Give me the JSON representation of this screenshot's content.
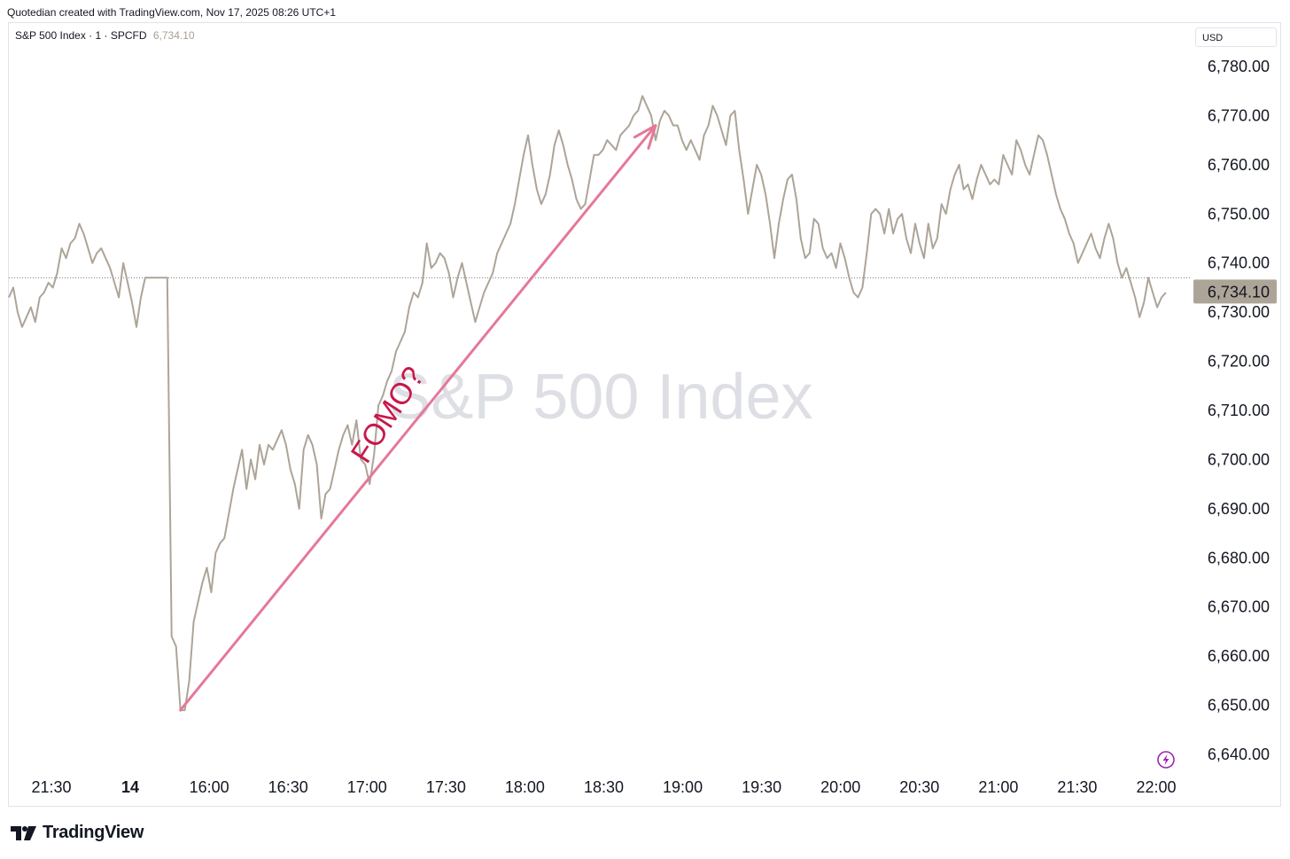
{
  "header": {
    "credit": "Quotedian created with TradingView.com, Nov 17, 2025 08:26 UTC+1"
  },
  "legend": {
    "symbol": "S&P 500 Index · 1 · SPCFD",
    "price": "6,734.10"
  },
  "currency": "USD",
  "watermark": "S&P 500 Index",
  "brand": {
    "name": "TradingView"
  },
  "colors": {
    "line": "#ada498",
    "annotation": "#e57898",
    "annotation_text": "#c8184a",
    "price_tag": "#ada498",
    "grid_dotted": "#777777"
  },
  "icons": {
    "logo": "tradingview-logo-icon",
    "lightning": "lightning-icon"
  },
  "chart_data": {
    "type": "line",
    "title": "",
    "xlabel": "",
    "ylabel": "",
    "ylim": [
      6635,
      6785
    ],
    "x_ticks": [
      "21:30",
      "14",
      "16:00",
      "16:30",
      "17:00",
      "17:30",
      "18:00",
      "18:30",
      "19:00",
      "19:30",
      "20:00",
      "20:30",
      "21:00",
      "21:30",
      "22:00"
    ],
    "y_ticks": [
      "6,780.00",
      "6,770.00",
      "6,760.00",
      "6,750.00",
      "6,740.00",
      "6,730.00",
      "6,720.00",
      "6,710.00",
      "6,700.00",
      "6,690.00",
      "6,680.00",
      "6,670.00",
      "6,660.00",
      "6,650.00",
      "6,640.00"
    ],
    "y_tick_values": [
      6780,
      6770,
      6760,
      6750,
      6740,
      6730,
      6720,
      6710,
      6700,
      6690,
      6680,
      6670,
      6660,
      6650,
      6640
    ],
    "last_price": 6734.1,
    "last_price_label": "6,734.10",
    "reference_line": 6737,
    "series": [
      {
        "values": [
          6733,
          6735,
          6730,
          6727,
          6729,
          6731,
          6728,
          6733,
          6734,
          6736,
          6735,
          6738,
          6743,
          6741,
          6744,
          6745,
          6748,
          6746,
          6743,
          6740,
          6742,
          6743,
          6741,
          6739,
          6736,
          6733,
          6740,
          6736,
          6732,
          6727,
          6733,
          6737,
          6737,
          6737,
          6737,
          6737,
          6737,
          6664,
          6662,
          6649,
          6649,
          6655,
          6667,
          6671,
          6675,
          6678,
          6673,
          6681,
          6683,
          6684,
          6689,
          6694,
          6698,
          6702,
          6694,
          6700,
          6696,
          6703,
          6699,
          6703,
          6702,
          6704,
          6706,
          6703,
          6698,
          6695,
          6690,
          6702,
          6705,
          6703,
          6699,
          6688,
          6693,
          6694,
          6698,
          6702,
          6705,
          6707,
          6703,
          6708,
          6700,
          6699,
          6695,
          6701,
          6711,
          6713,
          6716,
          6718,
          6722,
          6724,
          6726,
          6731,
          6734,
          6733,
          6736,
          6744,
          6739,
          6740,
          6742,
          6741,
          6738,
          6733,
          6737,
          6740,
          6736,
          6732,
          6728,
          6731,
          6734,
          6736,
          6738,
          6742,
          6744,
          6746,
          6748,
          6752,
          6757,
          6762,
          6766,
          6760,
          6755,
          6752,
          6754,
          6758,
          6764,
          6767,
          6764,
          6760,
          6757,
          6753,
          6751,
          6752,
          6757,
          6762,
          6762,
          6763,
          6765,
          6764,
          6763,
          6766,
          6767,
          6768,
          6770,
          6771,
          6774,
          6772,
          6770,
          6765,
          6769,
          6771,
          6770,
          6768,
          6768,
          6765,
          6763,
          6765,
          6763,
          6761,
          6766,
          6768,
          6772,
          6770,
          6767,
          6764,
          6770,
          6771,
          6763,
          6757,
          6750,
          6755,
          6760,
          6758,
          6754,
          6748,
          6741,
          6748,
          6753,
          6757,
          6758,
          6753,
          6745,
          6741,
          6742,
          6749,
          6748,
          6743,
          6741,
          6742,
          6739,
          6744,
          6741,
          6737,
          6734,
          6733,
          6735,
          6742,
          6750,
          6751,
          6750,
          6746,
          6751,
          6746,
          6749,
          6750,
          6745,
          6742,
          6748,
          6744,
          6741,
          6748,
          6743,
          6745,
          6752,
          6750,
          6755,
          6758,
          6760,
          6755,
          6756,
          6753,
          6757,
          6760,
          6758,
          6756,
          6757,
          6756,
          6762,
          6760,
          6758,
          6765,
          6763,
          6760,
          6758,
          6762,
          6766,
          6765,
          6762,
          6758,
          6754,
          6751,
          6749,
          6746,
          6744,
          6740,
          6742,
          6744,
          6746,
          6743,
          6741,
          6745,
          6748,
          6745,
          6740,
          6737,
          6739,
          6736,
          6733,
          6729,
          6732,
          6737,
          6734,
          6731,
          6733,
          6734
        ]
      }
    ],
    "annotations": [
      {
        "type": "arrow",
        "label": "",
        "from": {
          "x": 39,
          "y": 6649
        },
        "to": {
          "x": 147,
          "y": 6768
        }
      },
      {
        "type": "text",
        "label": "FOMO?",
        "at": {
          "x": 88,
          "y": 6708
        }
      }
    ]
  }
}
